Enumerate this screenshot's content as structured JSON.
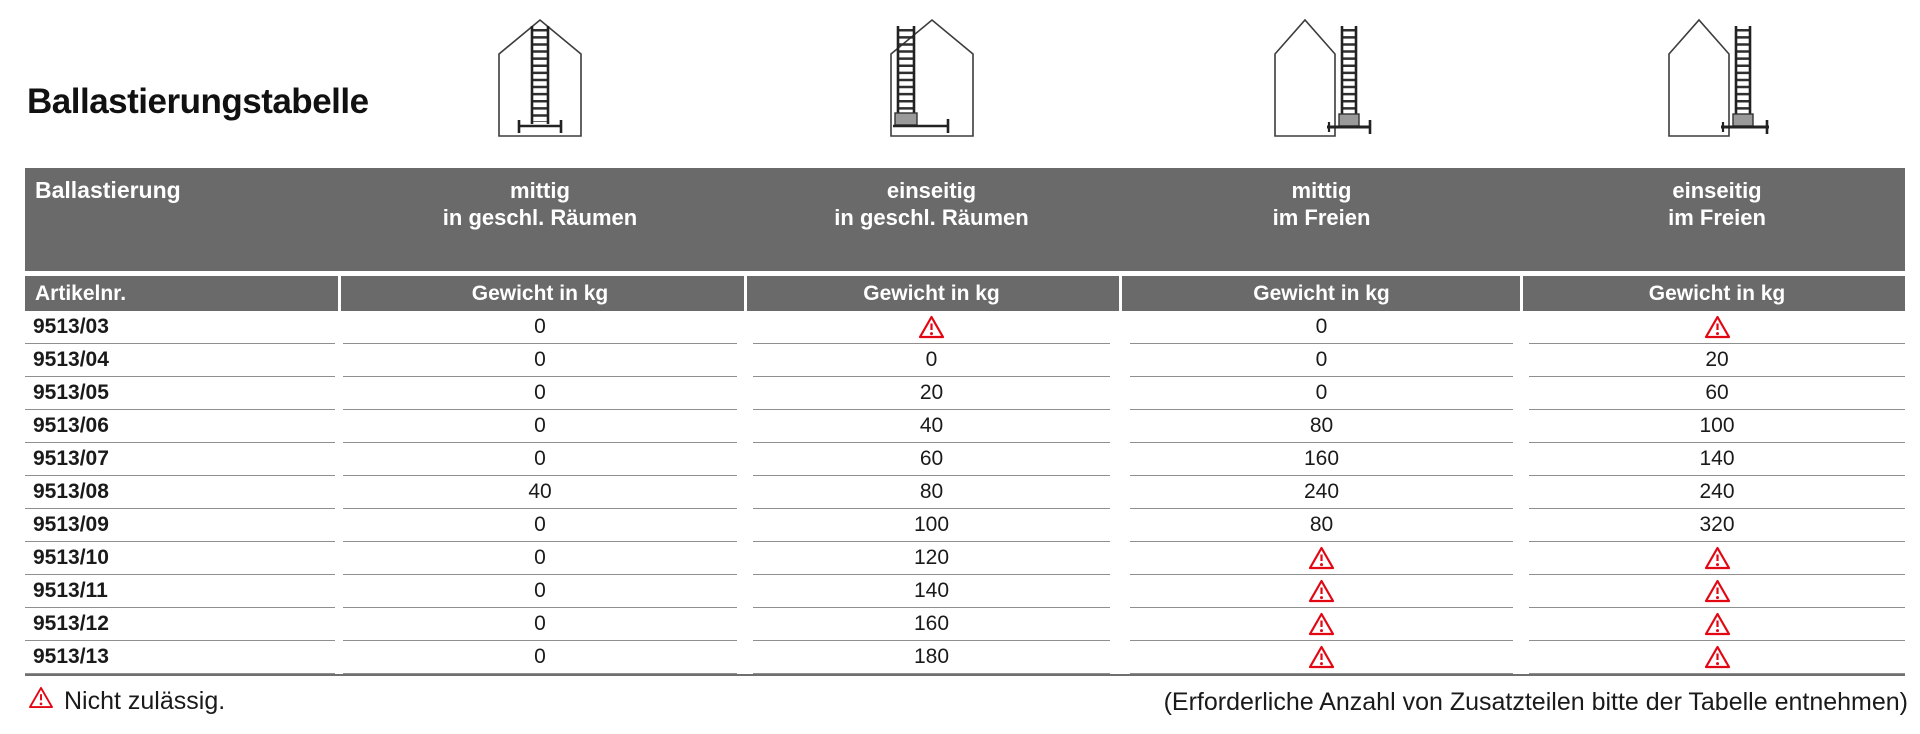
{
  "page": {
    "title": "Ballastierungstabelle"
  },
  "icons": [
    {
      "name": "ladder-centered-indoor-icon"
    },
    {
      "name": "ladder-one-sided-indoor-icon"
    },
    {
      "name": "ladder-centered-outdoor-icon"
    },
    {
      "name": "ladder-one-sided-outdoor-icon"
    }
  ],
  "table": {
    "corner_label": "Ballastierung",
    "col_headers": [
      {
        "line1": "mittig",
        "line2": "in geschl. Räumen"
      },
      {
        "line1": "einseitig",
        "line2": "in geschl. Räumen"
      },
      {
        "line1": "mittig",
        "line2": "im Freien"
      },
      {
        "line1": "einseitig",
        "line2": "im Freien"
      }
    ],
    "subheader": {
      "article": "Artikelnr.",
      "weight": "Gewicht in kg"
    },
    "rows": [
      {
        "article": "9513/03",
        "values": [
          "0",
          "warning",
          "0",
          "warning"
        ]
      },
      {
        "article": "9513/04",
        "values": [
          "0",
          "0",
          "0",
          "20"
        ]
      },
      {
        "article": "9513/05",
        "values": [
          "0",
          "20",
          "0",
          "60"
        ]
      },
      {
        "article": "9513/06",
        "values": [
          "0",
          "40",
          "80",
          "100"
        ]
      },
      {
        "article": "9513/07",
        "values": [
          "0",
          "60",
          "160",
          "140"
        ]
      },
      {
        "article": "9513/08",
        "values": [
          "40",
          "80",
          "240",
          "240"
        ]
      },
      {
        "article": "9513/09",
        "values": [
          "0",
          "100",
          "80",
          "320"
        ]
      },
      {
        "article": "9513/10",
        "values": [
          "0",
          "120",
          "warning",
          "warning"
        ]
      },
      {
        "article": "9513/11",
        "values": [
          "0",
          "140",
          "warning",
          "warning"
        ]
      },
      {
        "article": "9513/12",
        "values": [
          "0",
          "160",
          "warning",
          "warning"
        ]
      },
      {
        "article": "9513/13",
        "values": [
          "0",
          "180",
          "warning",
          "warning"
        ]
      }
    ]
  },
  "footer": {
    "legend_text": "Nicht zulässig.",
    "note": "(Erforderliche Anzahl von Zusatzteilen bitte der Tabelle entnehmen)"
  },
  "colors": {
    "header_bg": "#6a6a6a",
    "header_text": "#ffffff",
    "warning_red": "#e30613",
    "row_separator": "#8f8f8f",
    "body_text": "#1a1a1a"
  }
}
